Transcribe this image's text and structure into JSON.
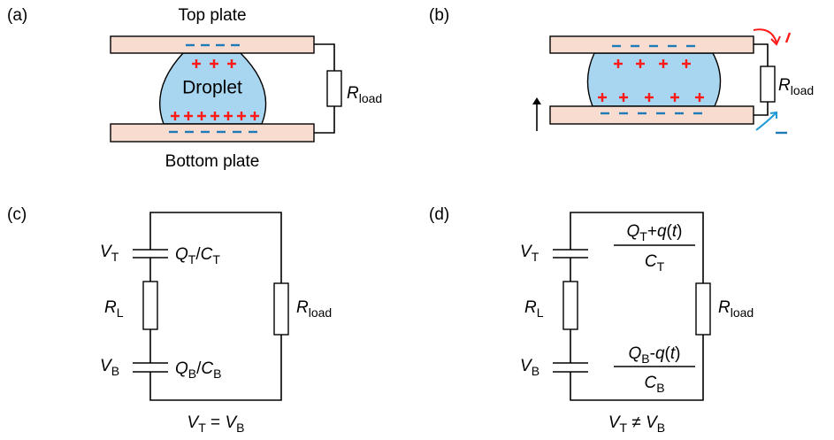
{
  "panel_a": {
    "label": "(a)",
    "top_plate": "Top plate",
    "droplet": "Droplet",
    "bottom_plate": "Bottom plate",
    "load": [
      {
        "text": "R",
        "style": "italic"
      },
      {
        "text": "load",
        "style": "sub"
      }
    ]
  },
  "panel_b": {
    "label": "(b)",
    "load": [
      {
        "text": "R",
        "style": "italic"
      },
      {
        "text": "load",
        "style": "sub"
      }
    ]
  },
  "panel_c": {
    "label": "(c)",
    "v_top": [
      {
        "text": "V",
        "style": "italic"
      },
      {
        "text": "T",
        "style": "sub"
      }
    ],
    "top_charge": [
      {
        "text": "Q",
        "style": "italic"
      },
      {
        "text": "T",
        "style": "sub"
      },
      {
        "text": "/",
        "style": "normal"
      },
      {
        "text": "C",
        "style": "italic"
      },
      {
        "text": "T",
        "style": "sub"
      }
    ],
    "r_l": [
      {
        "text": "R",
        "style": "italic"
      },
      {
        "text": "L",
        "style": "sub"
      }
    ],
    "v_bottom": [
      {
        "text": "V",
        "style": "italic"
      },
      {
        "text": "B",
        "style": "sub"
      }
    ],
    "bottom_charge": [
      {
        "text": "Q",
        "style": "italic"
      },
      {
        "text": "B",
        "style": "sub"
      },
      {
        "text": "/",
        "style": "normal"
      },
      {
        "text": "C",
        "style": "italic"
      },
      {
        "text": "B",
        "style": "sub"
      }
    ],
    "load": [
      {
        "text": "R",
        "style": "italic"
      },
      {
        "text": "load",
        "style": "sub"
      }
    ],
    "relation": [
      {
        "text": "V",
        "style": "italic"
      },
      {
        "text": "T",
        "style": "sub"
      },
      {
        "text": " = ",
        "style": "normal"
      },
      {
        "text": "V",
        "style": "italic"
      },
      {
        "text": "B",
        "style": "sub"
      }
    ]
  },
  "panel_d": {
    "label": "(d)",
    "v_top": [
      {
        "text": "V",
        "style": "italic"
      },
      {
        "text": "T",
        "style": "sub"
      }
    ],
    "top_numerator": [
      {
        "text": "Q",
        "style": "italic"
      },
      {
        "text": "T",
        "style": "sub"
      },
      {
        "text": "+",
        "style": "normal"
      },
      {
        "text": "q",
        "style": "italic"
      },
      {
        "text": "(",
        "style": "normal"
      },
      {
        "text": "t",
        "style": "italic"
      },
      {
        "text": ")",
        "style": "normal"
      }
    ],
    "top_denominator": [
      {
        "text": "C",
        "style": "italic"
      },
      {
        "text": "T",
        "style": "sub"
      }
    ],
    "r_l": [
      {
        "text": "R",
        "style": "italic"
      },
      {
        "text": "L",
        "style": "sub"
      }
    ],
    "v_bottom": [
      {
        "text": "V",
        "style": "italic"
      },
      {
        "text": "B",
        "style": "sub"
      }
    ],
    "bottom_numerator": [
      {
        "text": "Q",
        "style": "italic"
      },
      {
        "text": "B",
        "style": "sub"
      },
      {
        "text": "-",
        "style": "normal"
      },
      {
        "text": "q",
        "style": "italic"
      },
      {
        "text": "(",
        "style": "normal"
      },
      {
        "text": "t",
        "style": "italic"
      },
      {
        "text": ")",
        "style": "normal"
      }
    ],
    "bottom_denominator": [
      {
        "text": "C",
        "style": "italic"
      },
      {
        "text": "B",
        "style": "sub"
      }
    ],
    "load": [
      {
        "text": "R",
        "style": "italic"
      },
      {
        "text": "load",
        "style": "sub"
      }
    ],
    "relation": [
      {
        "text": "V",
        "style": "italic"
      },
      {
        "text": "T",
        "style": "sub"
      },
      {
        "text": " ≠ ",
        "style": "normal"
      },
      {
        "text": "V",
        "style": "italic"
      },
      {
        "text": "B",
        "style": "sub"
      }
    ]
  }
}
